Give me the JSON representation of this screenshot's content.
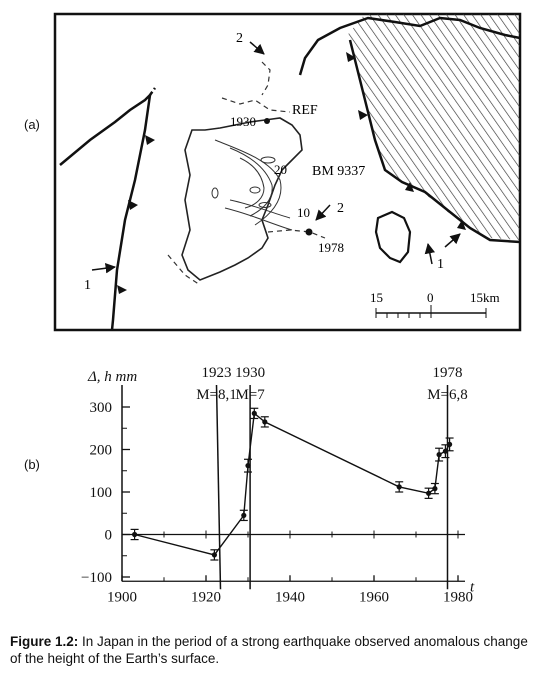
{
  "panel_a": {
    "label": "(a)",
    "annotations": {
      "arrow_2_top": "2",
      "ref": "REF",
      "year_1930": "1930",
      "contour_20": "20",
      "bm": "BM 9337",
      "contour_10": "10",
      "arrow_2_right": "2",
      "year_1978": "1978",
      "arrow_1_left": "1",
      "arrow_1_right": "1"
    },
    "scale": {
      "left": "15",
      "mid": "0",
      "right": "15km"
    }
  },
  "panel_b": {
    "label": "(b)"
  },
  "chart_data": {
    "type": "line",
    "ylabel": "Δ, h mm",
    "xlabel": "t",
    "xlim": [
      1900,
      1982
    ],
    "ylim": [
      -110,
      320
    ],
    "xticks": [
      "1900",
      "1920",
      "1940",
      "1960",
      "1980"
    ],
    "yticks": [
      "300",
      "200",
      "100",
      "0",
      "−100"
    ],
    "events": [
      {
        "year": 1922.5,
        "line1": "1923",
        "line2": "M=8,1"
      },
      {
        "year": 1930.5,
        "line1": "1930",
        "line2": "M=7"
      },
      {
        "year": 1977.5,
        "line1": "1978",
        "line2": "M=6,8"
      }
    ],
    "series": [
      {
        "x": [
          1903,
          1922,
          1929,
          1930,
          1931.5,
          1934,
          1966,
          1973,
          1974.5,
          1975.5,
          1977,
          1978
        ],
        "y": [
          0,
          -48,
          45,
          162,
          285,
          265,
          112,
          97,
          108,
          188,
          196,
          212
        ],
        "err": [
          12,
          12,
          12,
          15,
          12,
          12,
          12,
          12,
          12,
          15,
          15,
          15
        ]
      }
    ]
  },
  "caption": {
    "lead": "Figure 1.2:",
    "text": " In Japan in the period of a strong earthquake observed anomalous change of the height of the Earth’s surface."
  }
}
